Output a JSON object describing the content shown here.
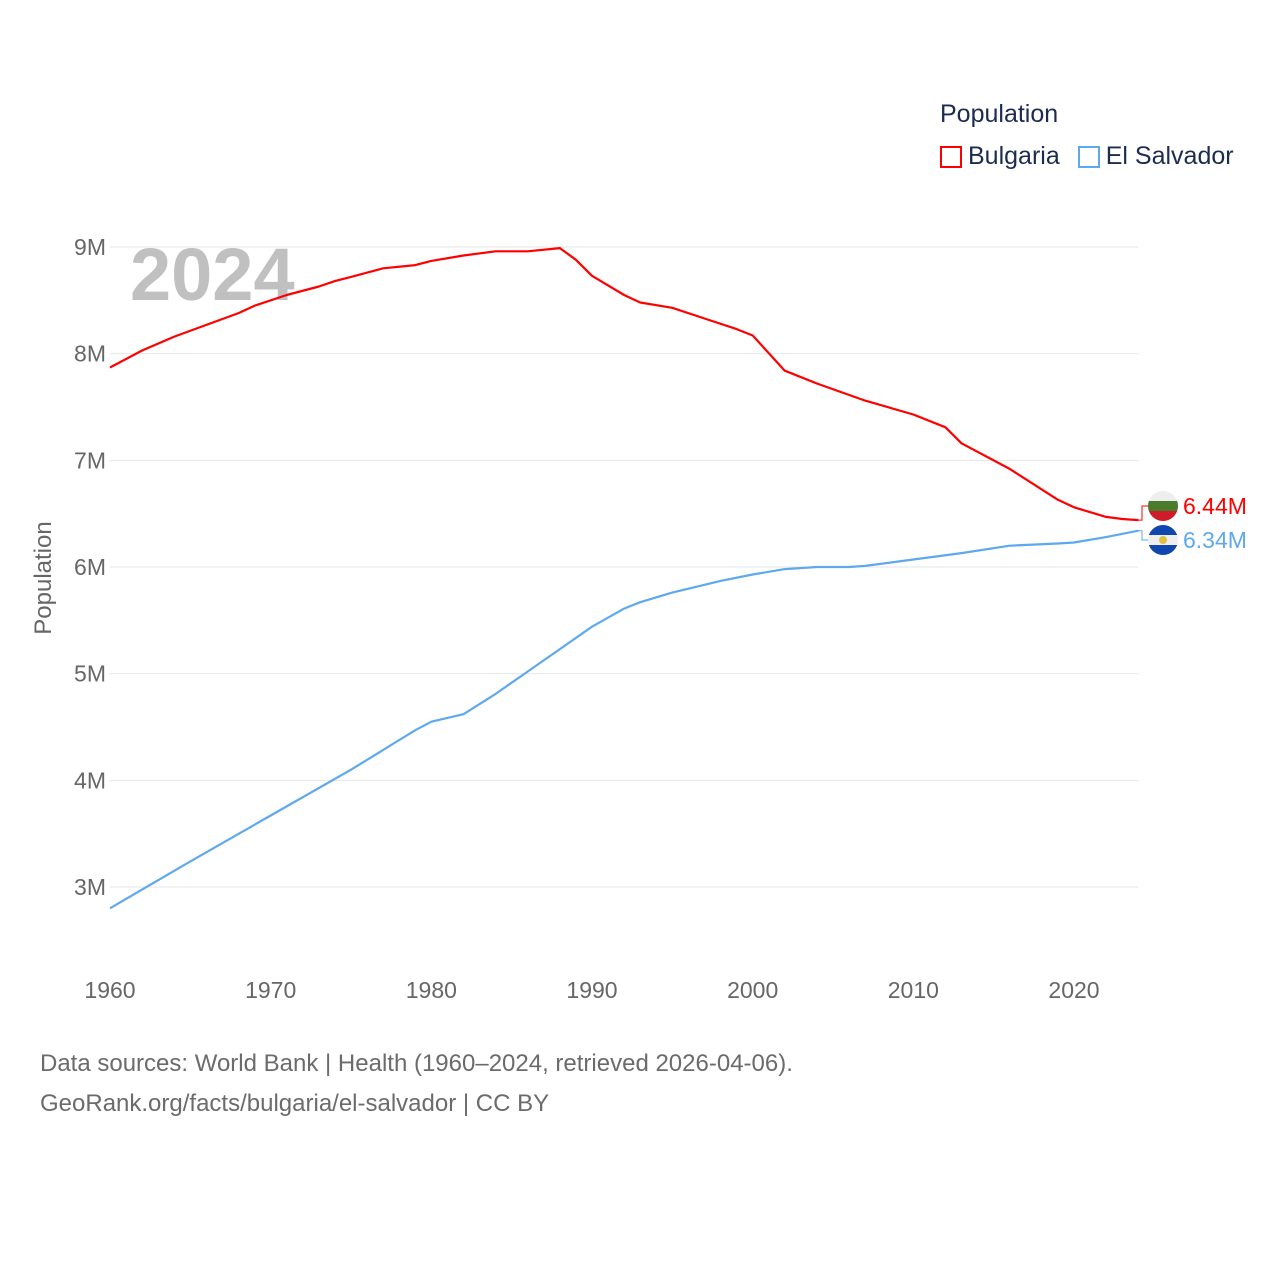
{
  "chart_data": {
    "type": "line",
    "title": "Population",
    "xlabel": "",
    "ylabel": "Population",
    "xlim": [
      1960,
      2024
    ],
    "ylim": [
      2.5,
      9.1
    ],
    "y_unit": "millions",
    "x_ticks": [
      1960,
      1970,
      1980,
      1990,
      2000,
      2010,
      2020
    ],
    "y_ticks": [
      3,
      4,
      5,
      6,
      7,
      8,
      9
    ],
    "y_tick_labels": [
      "3M",
      "4M",
      "5M",
      "6M",
      "7M",
      "8M",
      "9M"
    ],
    "grid": true,
    "legend_placement": "top-right",
    "year_watermark": "2024",
    "series": [
      {
        "name": "Bulgaria",
        "color": "#ff0000",
        "end_label": "6.44M",
        "x": [
          1960,
          1962,
          1964,
          1966,
          1968,
          1969,
          1971,
          1973,
          1974,
          1975,
          1977,
          1979,
          1980,
          1982,
          1984,
          1986,
          1988,
          1989,
          1990,
          1992,
          1993,
          1995,
          1997,
          1999,
          2000,
          2002,
          2004,
          2007,
          2010,
          2012,
          2013,
          2016,
          2019,
          2020,
          2022,
          2023,
          2024
        ],
        "values": [
          7.87,
          8.03,
          8.16,
          8.27,
          8.38,
          8.45,
          8.55,
          8.63,
          8.68,
          8.72,
          8.8,
          8.83,
          8.87,
          8.92,
          8.96,
          8.96,
          8.99,
          8.88,
          8.73,
          8.55,
          8.48,
          8.43,
          8.33,
          8.23,
          8.17,
          7.84,
          7.72,
          7.56,
          7.43,
          7.31,
          7.16,
          6.92,
          6.63,
          6.56,
          6.47,
          6.45,
          6.44
        ]
      },
      {
        "name": "El Salvador",
        "color": "#5ea8ee",
        "end_label": "6.34M",
        "x": [
          1960,
          1965,
          1970,
          1975,
          1979,
          1980,
          1982,
          1984,
          1986,
          1988,
          1990,
          1992,
          1993,
          1995,
          1998,
          2000,
          2002,
          2004,
          2006,
          2007,
          2010,
          2013,
          2016,
          2019,
          2020,
          2022,
          2024
        ],
        "values": [
          2.8,
          3.24,
          3.67,
          4.1,
          4.47,
          4.55,
          4.62,
          4.81,
          5.02,
          5.23,
          5.44,
          5.61,
          5.67,
          5.76,
          5.87,
          5.93,
          5.98,
          6.0,
          6.0,
          6.01,
          6.07,
          6.13,
          6.2,
          6.22,
          6.23,
          6.28,
          6.34
        ]
      }
    ]
  },
  "source": {
    "line1": "Data sources: World Bank | Health (1960–2024, retrieved 2026-04-06).",
    "line2": "GeoRank.org/facts/bulgaria/el-salvador | CC BY"
  }
}
